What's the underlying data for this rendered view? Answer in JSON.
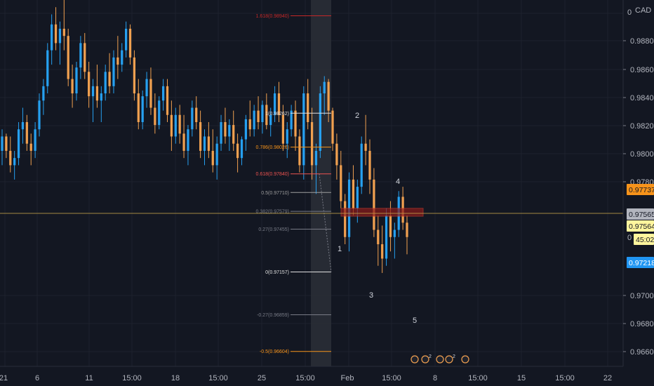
{
  "chart_data": {
    "type": "candlestick",
    "currency": "CAD",
    "y_axis": {
      "ticks": [
        "0.98800",
        "0.98600",
        "0.98400",
        "0.98200",
        "0.98000",
        "0.97800",
        "0.97000",
        "0.96800",
        "0.96600"
      ],
      "partial_ticks": [
        "0",
        "0"
      ]
    },
    "x_axis": {
      "ticks": [
        "21",
        "6",
        "11",
        "15:00",
        "18",
        "15:00",
        "25",
        "15:00",
        "Feb",
        "15:00",
        "8",
        "15:00",
        "15",
        "15:00",
        "22"
      ]
    },
    "price_badges": [
      {
        "label": "0.97737",
        "bg": "#f7931a",
        "fg": "#131722"
      },
      {
        "label": "0.97565",
        "bg": "#b2b5be",
        "fg": "#131722"
      },
      {
        "label": "0.97564",
        "bg": "#fff59d",
        "fg": "#131722"
      },
      {
        "label": "45:02",
        "bg": "#fff59d",
        "fg": "#131722"
      },
      {
        "label": "0.97218",
        "bg": "#2196f3",
        "fg": "#ffffff"
      }
    ],
    "fib_levels": [
      {
        "label": "1.618(0.98940)",
        "color": "#c62828"
      },
      {
        "label": "1(0.98262)",
        "color": "#e0e0e0"
      },
      {
        "label": "0.786(0.98026)",
        "color": "#f7931a"
      },
      {
        "label": "0.618(0.97840)",
        "color": "#ef5350"
      },
      {
        "label": "0.5(0.97710)",
        "color": "#9e9e9e"
      },
      {
        "label": "0.382(0.97579)",
        "color": "#787b86"
      },
      {
        "label": "0.27(0.97455)",
        "color": "#787b86"
      },
      {
        "label": "0(0.97157)",
        "color": "#e0e0e0"
      },
      {
        "label": "-0.27(0.96859)",
        "color": "#787b86"
      },
      {
        "label": "-0.5(0.96604)",
        "color": "#f7931a"
      }
    ],
    "wave_labels": [
      "1",
      "2",
      "3",
      "4",
      "5"
    ],
    "event_markers": [
      "2",
      "2"
    ],
    "colors": {
      "background": "#131722",
      "up": "#26a0f0",
      "down": "#f0a050",
      "price_line": "#c8a64a",
      "zone": "#8b1a1a"
    },
    "price_range": {
      "min": 0.965,
      "max": 0.9905
    },
    "series": {
      "name": "",
      "values": [
        [
          0.98,
          0.9815,
          0.979,
          0.981
        ],
        [
          0.981,
          0.9812,
          0.9795,
          0.98
        ],
        [
          0.98,
          0.981,
          0.9785,
          0.979
        ],
        [
          0.979,
          0.98,
          0.978,
          0.9795
        ],
        [
          0.9795,
          0.982,
          0.979,
          0.9815
        ],
        [
          0.9815,
          0.983,
          0.9805,
          0.982
        ],
        [
          0.982,
          0.9825,
          0.98,
          0.9805
        ],
        [
          0.9805,
          0.9812,
          0.979,
          0.98
        ],
        [
          0.98,
          0.982,
          0.9795,
          0.9815
        ],
        [
          0.9815,
          0.984,
          0.981,
          0.9835
        ],
        [
          0.9835,
          0.985,
          0.9825,
          0.9845
        ],
        [
          0.9845,
          0.9875,
          0.984,
          0.987
        ],
        [
          0.987,
          0.9895,
          0.986,
          0.9888
        ],
        [
          0.9888,
          0.99,
          0.987,
          0.9875
        ],
        [
          0.9875,
          0.989,
          0.986,
          0.9885
        ],
        [
          0.9885,
          0.9905,
          0.987,
          0.988
        ],
        [
          0.988,
          0.9885,
          0.9845,
          0.985
        ],
        [
          0.985,
          0.986,
          0.983,
          0.984
        ],
        [
          0.984,
          0.9862,
          0.9835,
          0.9858
        ],
        [
          0.9858,
          0.988,
          0.985,
          0.9875
        ],
        [
          0.9875,
          0.9882,
          0.985,
          0.9855
        ],
        [
          0.9855,
          0.9862,
          0.983,
          0.9838
        ],
        [
          0.9838,
          0.985,
          0.982,
          0.9845
        ],
        [
          0.9845,
          0.986,
          0.983,
          0.9835
        ],
        [
          0.9835,
          0.9845,
          0.982,
          0.984
        ],
        [
          0.984,
          0.986,
          0.9835,
          0.9855
        ],
        [
          0.9855,
          0.9868,
          0.984,
          0.9845
        ],
        [
          0.9845,
          0.987,
          0.984,
          0.9865
        ],
        [
          0.9865,
          0.988,
          0.985,
          0.986
        ],
        [
          0.986,
          0.9875,
          0.9855,
          0.987
        ],
        [
          0.987,
          0.989,
          0.9865,
          0.9885
        ],
        [
          0.9885,
          0.9888,
          0.986,
          0.9865
        ],
        [
          0.9865,
          0.987,
          0.9835,
          0.984
        ],
        [
          0.984,
          0.985,
          0.9815,
          0.982
        ],
        [
          0.982,
          0.9842,
          0.9815,
          0.9838
        ],
        [
          0.9838,
          0.9855,
          0.983,
          0.985
        ],
        [
          0.985,
          0.9858,
          0.9825,
          0.983
        ],
        [
          0.983,
          0.984,
          0.9812,
          0.9818
        ],
        [
          0.9818,
          0.9838,
          0.9815,
          0.9835
        ],
        [
          0.9835,
          0.985,
          0.9828,
          0.9845
        ],
        [
          0.9845,
          0.985,
          0.982,
          0.9825
        ],
        [
          0.9825,
          0.9835,
          0.98,
          0.981
        ],
        [
          0.981,
          0.983,
          0.9805,
          0.9825
        ],
        [
          0.9825,
          0.9832,
          0.9805,
          0.9812
        ],
        [
          0.9812,
          0.9825,
          0.9795,
          0.98
        ],
        [
          0.98,
          0.9818,
          0.979,
          0.9815
        ],
        [
          0.9815,
          0.9835,
          0.981,
          0.983
        ],
        [
          0.983,
          0.9838,
          0.9815,
          0.982
        ],
        [
          0.982,
          0.9828,
          0.9795,
          0.98
        ],
        [
          0.98,
          0.9815,
          0.979,
          0.981
        ],
        [
          0.981,
          0.982,
          0.9795,
          0.98
        ],
        [
          0.98,
          0.9815,
          0.9785,
          0.979
        ],
        [
          0.979,
          0.981,
          0.978,
          0.9805
        ],
        [
          0.9805,
          0.9825,
          0.98,
          0.982
        ],
        [
          0.982,
          0.983,
          0.9805,
          0.981
        ],
        [
          0.981,
          0.9822,
          0.98,
          0.9818
        ],
        [
          0.9818,
          0.9828,
          0.98,
          0.9805
        ],
        [
          0.9805,
          0.9812,
          0.9785,
          0.9795
        ],
        [
          0.9795,
          0.981,
          0.979,
          0.9808
        ],
        [
          0.9808,
          0.9825,
          0.98,
          0.9822
        ],
        [
          0.9822,
          0.9835,
          0.981,
          0.9815
        ],
        [
          0.9815,
          0.9832,
          0.981,
          0.9828
        ],
        [
          0.9828,
          0.9838,
          0.9815,
          0.982
        ],
        [
          0.982,
          0.9835,
          0.9812,
          0.9832
        ],
        [
          0.9832,
          0.984,
          0.9815,
          0.9818
        ],
        [
          0.9818,
          0.983,
          0.981,
          0.9825
        ],
        [
          0.9825,
          0.9845,
          0.982,
          0.984
        ],
        [
          0.984,
          0.9848,
          0.982,
          0.9825
        ],
        [
          0.9825,
          0.9832,
          0.98,
          0.9805
        ],
        [
          0.9805,
          0.982,
          0.9795,
          0.9815
        ],
        [
          0.9815,
          0.9832,
          0.981,
          0.9828
        ],
        [
          0.9828,
          0.9835,
          0.98,
          0.981
        ],
        [
          0.981,
          0.9815,
          0.9785,
          0.979
        ],
        [
          0.979,
          0.9845,
          0.978,
          0.984
        ],
        [
          0.984,
          0.985,
          0.9815,
          0.982
        ],
        [
          0.982,
          0.983,
          0.978,
          0.979
        ],
        [
          0.979,
          0.9805,
          0.977,
          0.98
        ],
        [
          0.98,
          0.9845,
          0.9795,
          0.984
        ],
        [
          0.984,
          0.9852,
          0.9825,
          0.9848
        ],
        [
          0.9848,
          0.985,
          0.982,
          0.9828
        ],
        [
          0.9828,
          0.983,
          0.98,
          0.9805
        ],
        [
          0.9805,
          0.9812,
          0.978,
          0.979
        ],
        [
          0.979,
          0.98,
          0.976,
          0.9765
        ],
        [
          0.9765,
          0.977,
          0.9735,
          0.974
        ],
        [
          0.974,
          0.9785,
          0.973,
          0.978
        ],
        [
          0.978,
          0.979,
          0.9755,
          0.976
        ],
        [
          0.976,
          0.978,
          0.975,
          0.9775
        ],
        [
          0.9775,
          0.981,
          0.977,
          0.9805
        ],
        [
          0.9805,
          0.9825,
          0.979,
          0.98
        ],
        [
          0.98,
          0.9808,
          0.977,
          0.978
        ],
        [
          0.978,
          0.9788,
          0.974,
          0.9745
        ],
        [
          0.9745,
          0.9755,
          0.972,
          0.9735
        ],
        [
          0.9735,
          0.9748,
          0.9715,
          0.9725
        ],
        [
          0.9725,
          0.976,
          0.972,
          0.9755
        ],
        [
          0.9755,
          0.9765,
          0.973,
          0.974
        ],
        [
          0.974,
          0.975,
          0.9725,
          0.9745
        ],
        [
          0.9745,
          0.9772,
          0.974,
          0.9768
        ],
        [
          0.9768,
          0.9775,
          0.9745,
          0.975
        ],
        [
          0.975,
          0.9755,
          0.9728,
          0.974
        ]
      ]
    }
  }
}
